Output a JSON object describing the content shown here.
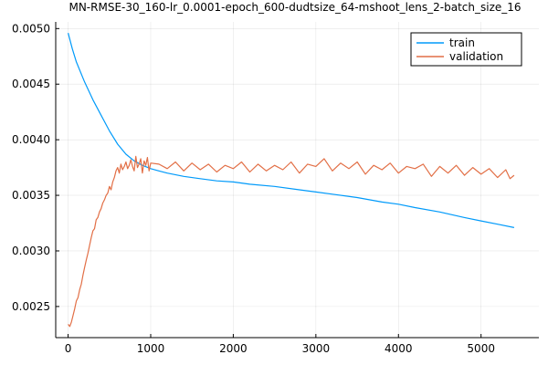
{
  "chart_data": {
    "type": "line",
    "title": "MN-RMSE-30_160-lr_0.0001-epoch_600-dudtsize_64-mshoot_lens_2-batch_size_16",
    "xlabel": "",
    "ylabel": "",
    "xlim": [
      -150,
      5700
    ],
    "ylim": [
      0.00222,
      0.00506
    ],
    "xticks": [
      0,
      1000,
      2000,
      3000,
      4000,
      5000
    ],
    "xtick_labels": [
      "0",
      "1000",
      "2000",
      "3000",
      "4000",
      "5000"
    ],
    "yticks": [
      0.0025,
      0.003,
      0.0035,
      0.004,
      0.0045,
      0.005
    ],
    "ytick_labels": [
      "0.0025",
      "0.0030",
      "0.0035",
      "0.0040",
      "0.0045",
      "0.0050"
    ],
    "grid": true,
    "legend_position": "top-right",
    "series": [
      {
        "name": "train",
        "color": "#009AFA",
        "x": [
          0,
          50,
          100,
          200,
          300,
          400,
          500,
          600,
          700,
          800,
          900,
          1000,
          1100,
          1200,
          1400,
          1600,
          1800,
          2000,
          2200,
          2500,
          2800,
          3000,
          3200,
          3500,
          3800,
          4000,
          4200,
          4500,
          4800,
          5000,
          5200,
          5400
        ],
        "y": [
          0.00496,
          0.00482,
          0.0047,
          0.00452,
          0.00436,
          0.00422,
          0.00408,
          0.00396,
          0.00387,
          0.00381,
          0.00377,
          0.00374,
          0.00372,
          0.0037,
          0.00367,
          0.00365,
          0.00363,
          0.00362,
          0.0036,
          0.00358,
          0.00355,
          0.00353,
          0.00351,
          0.00348,
          0.00344,
          0.00342,
          0.00339,
          0.00335,
          0.0033,
          0.00327,
          0.00324,
          0.00321
        ]
      },
      {
        "name": "validation",
        "color": "#E26F46",
        "x": [
          0,
          20,
          40,
          60,
          80,
          100,
          120,
          140,
          160,
          180,
          200,
          220,
          240,
          260,
          280,
          300,
          320,
          340,
          360,
          380,
          400,
          420,
          440,
          460,
          480,
          500,
          520,
          540,
          560,
          580,
          600,
          620,
          640,
          660,
          680,
          700,
          720,
          740,
          760,
          780,
          800,
          820,
          840,
          860,
          880,
          900,
          920,
          940,
          960,
          980,
          1000,
          1100,
          1200,
          1300,
          1400,
          1500,
          1600,
          1700,
          1800,
          1900,
          2000,
          2100,
          2200,
          2300,
          2400,
          2500,
          2600,
          2700,
          2800,
          2900,
          3000,
          3100,
          3200,
          3300,
          3400,
          3500,
          3600,
          3700,
          3800,
          3900,
          4000,
          4100,
          4200,
          4300,
          4400,
          4500,
          4600,
          4700,
          4800,
          4900,
          5000,
          5100,
          5200,
          5300,
          5350,
          5400
        ],
        "y": [
          0.00234,
          0.00232,
          0.00236,
          0.00242,
          0.00248,
          0.00255,
          0.00258,
          0.00265,
          0.0027,
          0.00278,
          0.00285,
          0.00292,
          0.00298,
          0.00305,
          0.00312,
          0.00318,
          0.0032,
          0.00328,
          0.0033,
          0.00335,
          0.00338,
          0.00343,
          0.00346,
          0.0035,
          0.00352,
          0.00358,
          0.00355,
          0.00362,
          0.00366,
          0.00372,
          0.00375,
          0.0037,
          0.00378,
          0.00373,
          0.00376,
          0.0038,
          0.00374,
          0.00377,
          0.00382,
          0.00376,
          0.00372,
          0.00385,
          0.00375,
          0.00378,
          0.00383,
          0.0037,
          0.00381,
          0.00377,
          0.00384,
          0.00372,
          0.00379,
          0.00378,
          0.00374,
          0.0038,
          0.00372,
          0.00379,
          0.00373,
          0.00378,
          0.00371,
          0.00377,
          0.00374,
          0.0038,
          0.00371,
          0.00378,
          0.00372,
          0.00377,
          0.00373,
          0.0038,
          0.0037,
          0.00378,
          0.00376,
          0.00383,
          0.00372,
          0.00379,
          0.00374,
          0.0038,
          0.00369,
          0.00377,
          0.00373,
          0.00379,
          0.0037,
          0.00376,
          0.00374,
          0.00378,
          0.00367,
          0.00376,
          0.0037,
          0.00377,
          0.00368,
          0.00375,
          0.00369,
          0.00374,
          0.00366,
          0.00373,
          0.00365,
          0.00368
        ]
      }
    ]
  }
}
